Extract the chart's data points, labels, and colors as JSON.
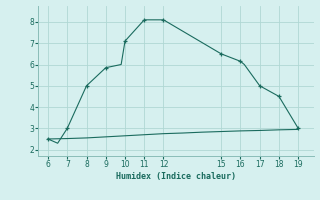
{
  "xlabel": "Humidex (Indice chaleur)",
  "bg_color": "#d6f0ef",
  "line_color": "#1a6b5e",
  "grid_color": "#b0d8d4",
  "upper_x": [
    6,
    6.5,
    7,
    8,
    9,
    9.8,
    10,
    11,
    12,
    15,
    16,
    16.2,
    17,
    18,
    19
  ],
  "upper_y": [
    2.5,
    2.3,
    3.0,
    5.0,
    5.85,
    6.0,
    7.1,
    8.1,
    8.1,
    6.5,
    6.15,
    6.0,
    5.0,
    4.5,
    3.0
  ],
  "lower_x": [
    6,
    7,
    8,
    9,
    10,
    11,
    12,
    13,
    14,
    15,
    16,
    17,
    18,
    19
  ],
  "lower_y": [
    2.5,
    2.52,
    2.55,
    2.6,
    2.65,
    2.7,
    2.75,
    2.78,
    2.82,
    2.85,
    2.88,
    2.9,
    2.93,
    2.95
  ],
  "xlim": [
    5.5,
    19.8
  ],
  "ylim": [
    1.7,
    8.75
  ],
  "xticks": [
    6,
    7,
    8,
    9,
    10,
    11,
    12,
    15,
    16,
    17,
    18,
    19
  ],
  "yticks": [
    2,
    3,
    4,
    5,
    6,
    7,
    8
  ],
  "marker_x": [
    6,
    7,
    8,
    9,
    10,
    11,
    12,
    15,
    16,
    17,
    18,
    19
  ],
  "marker_y": [
    2.5,
    3.0,
    5.0,
    5.85,
    7.1,
    8.1,
    8.1,
    6.5,
    6.15,
    5.0,
    4.5,
    3.0
  ]
}
